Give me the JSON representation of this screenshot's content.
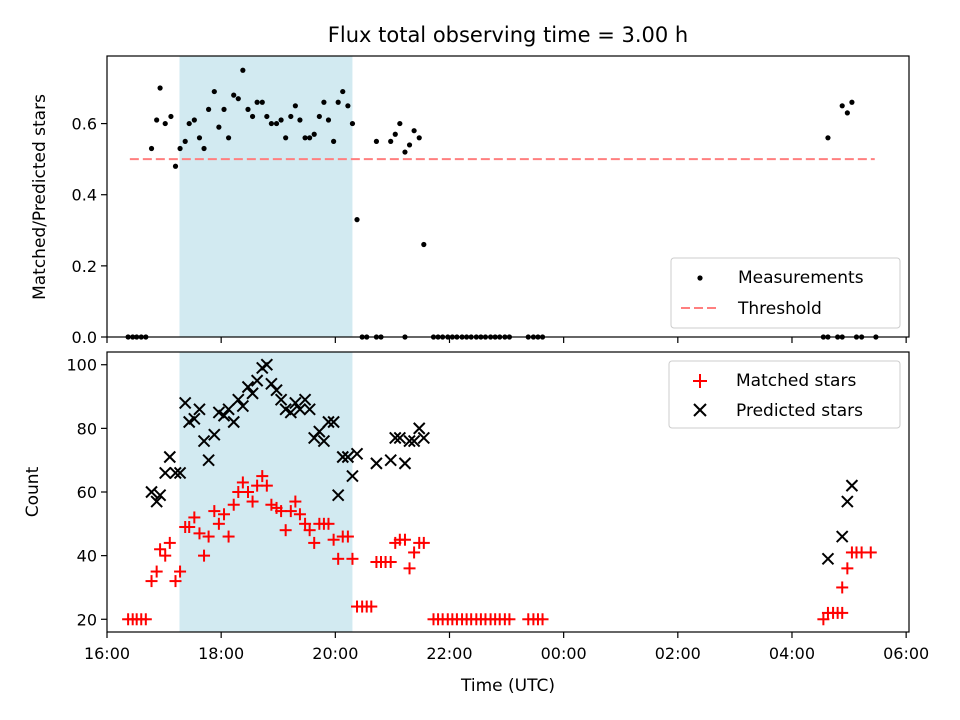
{
  "chart_data": [
    {
      "type": "scatter",
      "title": "Flux total observing time = 3.00 h",
      "xlabel": "",
      "ylabel": "Matched/Predicted stars",
      "ylim": [
        0,
        0.79
      ],
      "xlim": [
        16.0,
        30.05
      ],
      "x_ticks": [
        16,
        18,
        20,
        22,
        24,
        26,
        28,
        30
      ],
      "y_ticks": [
        {
          "value": 0,
          "label": "0.0"
        },
        {
          "value": 0.2,
          "label": "0.2"
        },
        {
          "value": 0.4,
          "label": "0.4"
        },
        {
          "value": 0.6,
          "label": "0.6"
        }
      ],
      "highlight_span": [
        17.27,
        20.3
      ],
      "legend_position": "lower-right",
      "threshold": {
        "name": "Threshold",
        "value": 0.5,
        "x": [
          16.4,
          29.45
        ],
        "color": "#ff7f7f"
      },
      "series": [
        {
          "name": "Measurements",
          "color": "#000000",
          "points": [
            [
              16.37,
              0
            ],
            [
              16.45,
              0
            ],
            [
              16.52,
              0
            ],
            [
              16.6,
              0
            ],
            [
              16.68,
              0
            ],
            [
              16.78,
              0.53
            ],
            [
              16.87,
              0.61
            ],
            [
              16.93,
              0.7
            ],
            [
              17.02,
              0.6
            ],
            [
              17.12,
              0.62
            ],
            [
              17.2,
              0.48
            ],
            [
              17.28,
              0.53
            ],
            [
              17.37,
              0.55
            ],
            [
              17.44,
              0.6
            ],
            [
              17.53,
              0.61
            ],
            [
              17.62,
              0.56
            ],
            [
              17.7,
              0.53
            ],
            [
              17.78,
              0.64
            ],
            [
              17.88,
              0.69
            ],
            [
              17.96,
              0.59
            ],
            [
              18.05,
              0.64
            ],
            [
              18.13,
              0.56
            ],
            [
              18.22,
              0.68
            ],
            [
              18.3,
              0.67
            ],
            [
              18.38,
              0.75
            ],
            [
              18.47,
              0.64
            ],
            [
              18.55,
              0.62
            ],
            [
              18.63,
              0.66
            ],
            [
              18.72,
              0.66
            ],
            [
              18.8,
              0.62
            ],
            [
              18.88,
              0.6
            ],
            [
              18.97,
              0.6
            ],
            [
              19.05,
              0.61
            ],
            [
              19.13,
              0.56
            ],
            [
              19.22,
              0.62
            ],
            [
              19.3,
              0.65
            ],
            [
              19.38,
              0.61
            ],
            [
              19.47,
              0.56
            ],
            [
              19.55,
              0.56
            ],
            [
              19.63,
              0.57
            ],
            [
              19.72,
              0.62
            ],
            [
              19.8,
              0.66
            ],
            [
              19.88,
              0.61
            ],
            [
              19.97,
              0.55
            ],
            [
              20.05,
              0.66
            ],
            [
              20.13,
              0.69
            ],
            [
              20.22,
              0.65
            ],
            [
              20.3,
              0.6
            ],
            [
              20.38,
              0.33
            ],
            [
              20.47,
              0
            ],
            [
              20.55,
              0
            ],
            [
              20.72,
              0
            ],
            [
              20.8,
              0
            ],
            [
              20.72,
              0.55
            ],
            [
              20.97,
              0.55
            ],
            [
              21.05,
              0.57
            ],
            [
              21.13,
              0.6
            ],
            [
              21.22,
              0.52
            ],
            [
              21.3,
              0.54
            ],
            [
              21.38,
              0.58
            ],
            [
              21.47,
              0.56
            ],
            [
              21.55,
              0.26
            ],
            [
              21.22,
              0
            ],
            [
              21.72,
              0
            ],
            [
              21.8,
              0
            ],
            [
              21.88,
              0
            ],
            [
              21.97,
              0
            ],
            [
              22.05,
              0
            ],
            [
              22.13,
              0
            ],
            [
              22.22,
              0
            ],
            [
              22.3,
              0
            ],
            [
              22.38,
              0
            ],
            [
              22.47,
              0
            ],
            [
              22.55,
              0
            ],
            [
              22.63,
              0
            ],
            [
              22.72,
              0
            ],
            [
              22.8,
              0
            ],
            [
              22.88,
              0
            ],
            [
              22.97,
              0
            ],
            [
              23.05,
              0
            ],
            [
              23.38,
              0
            ],
            [
              23.47,
              0
            ],
            [
              23.55,
              0
            ],
            [
              23.63,
              0
            ],
            [
              28.55,
              0
            ],
            [
              28.63,
              0
            ],
            [
              28.8,
              0
            ],
            [
              28.88,
              0
            ],
            [
              29.13,
              0
            ],
            [
              29.22,
              0
            ],
            [
              29.47,
              0
            ],
            [
              28.63,
              0.56
            ],
            [
              28.88,
              0.65
            ],
            [
              28.97,
              0.63
            ],
            [
              29.05,
              0.66
            ]
          ]
        }
      ]
    },
    {
      "type": "scatter",
      "title": "",
      "xlabel": "Time (UTC)",
      "ylabel": "Count",
      "ylim": [
        16,
        104
      ],
      "xlim": [
        16.0,
        30.05
      ],
      "x_ticks": [
        {
          "value": 16,
          "label": "16:00"
        },
        {
          "value": 18,
          "label": "18:00"
        },
        {
          "value": 20,
          "label": "20:00"
        },
        {
          "value": 22,
          "label": "22:00"
        },
        {
          "value": 24,
          "label": "00:00"
        },
        {
          "value": 26,
          "label": "02:00"
        },
        {
          "value": 28,
          "label": "04:00"
        },
        {
          "value": 30,
          "label": "06:00"
        }
      ],
      "y_ticks": [
        {
          "value": 20,
          "label": "20"
        },
        {
          "value": 40,
          "label": "40"
        },
        {
          "value": 60,
          "label": "60"
        },
        {
          "value": 80,
          "label": "80"
        },
        {
          "value": 100,
          "label": "100"
        }
      ],
      "highlight_span": [
        17.27,
        20.3
      ],
      "legend_position": "upper-right",
      "series": [
        {
          "name": "Matched stars",
          "marker": "plus",
          "color": "#ff0000",
          "points": [
            [
              16.37,
              20
            ],
            [
              16.45,
              20
            ],
            [
              16.52,
              20
            ],
            [
              16.6,
              20
            ],
            [
              16.68,
              20
            ],
            [
              16.78,
              32
            ],
            [
              16.87,
              35
            ],
            [
              16.93,
              42
            ],
            [
              17.02,
              40
            ],
            [
              17.1,
              44
            ],
            [
              17.2,
              32
            ],
            [
              17.28,
              35
            ],
            [
              17.37,
              49
            ],
            [
              17.44,
              49
            ],
            [
              17.53,
              52
            ],
            [
              17.62,
              47
            ],
            [
              17.7,
              40
            ],
            [
              17.78,
              46
            ],
            [
              17.88,
              54
            ],
            [
              17.96,
              50
            ],
            [
              18.05,
              53
            ],
            [
              18.13,
              46
            ],
            [
              18.22,
              56
            ],
            [
              18.3,
              60
            ],
            [
              18.38,
              63
            ],
            [
              18.47,
              60
            ],
            [
              18.55,
              57
            ],
            [
              18.63,
              62
            ],
            [
              18.72,
              65
            ],
            [
              18.8,
              62
            ],
            [
              18.88,
              56
            ],
            [
              18.97,
              55
            ],
            [
              19.05,
              54
            ],
            [
              19.13,
              48
            ],
            [
              19.22,
              54
            ],
            [
              19.3,
              57
            ],
            [
              19.38,
              53
            ],
            [
              19.47,
              50
            ],
            [
              19.55,
              48
            ],
            [
              19.63,
              44
            ],
            [
              19.72,
              50
            ],
            [
              19.8,
              50
            ],
            [
              19.88,
              50
            ],
            [
              19.97,
              45
            ],
            [
              20.05,
              39
            ],
            [
              20.13,
              46
            ],
            [
              20.22,
              46
            ],
            [
              20.3,
              39
            ],
            [
              20.38,
              24
            ],
            [
              20.47,
              24
            ],
            [
              20.55,
              24
            ],
            [
              20.63,
              24
            ],
            [
              20.72,
              38
            ],
            [
              20.8,
              38
            ],
            [
              20.88,
              38
            ],
            [
              20.97,
              38
            ],
            [
              21.05,
              44
            ],
            [
              21.13,
              45
            ],
            [
              21.22,
              45
            ],
            [
              21.3,
              36
            ],
            [
              21.38,
              41
            ],
            [
              21.47,
              44
            ],
            [
              21.55,
              44
            ],
            [
              21.72,
              20
            ],
            [
              21.8,
              20
            ],
            [
              21.88,
              20
            ],
            [
              21.97,
              20
            ],
            [
              22.05,
              20
            ],
            [
              22.13,
              20
            ],
            [
              22.22,
              20
            ],
            [
              22.3,
              20
            ],
            [
              22.38,
              20
            ],
            [
              22.47,
              20
            ],
            [
              22.55,
              20
            ],
            [
              22.63,
              20
            ],
            [
              22.72,
              20
            ],
            [
              22.8,
              20
            ],
            [
              22.88,
              20
            ],
            [
              22.97,
              20
            ],
            [
              23.05,
              20
            ],
            [
              23.38,
              20
            ],
            [
              23.47,
              20
            ],
            [
              23.55,
              20
            ],
            [
              23.63,
              20
            ],
            [
              28.55,
              20
            ],
            [
              28.63,
              22
            ],
            [
              28.72,
              22
            ],
            [
              28.8,
              22
            ],
            [
              28.88,
              22
            ],
            [
              28.88,
              30
            ],
            [
              28.97,
              36
            ],
            [
              29.05,
              41
            ],
            [
              29.13,
              41
            ],
            [
              29.22,
              41
            ],
            [
              29.38,
              41
            ]
          ]
        },
        {
          "name": "Predicted stars",
          "marker": "x",
          "color": "#000000",
          "points": [
            [
              16.78,
              60
            ],
            [
              16.87,
              57
            ],
            [
              16.93,
              59
            ],
            [
              17.02,
              66
            ],
            [
              17.1,
              71
            ],
            [
              17.2,
              66
            ],
            [
              17.28,
              66
            ],
            [
              17.37,
              88
            ],
            [
              17.44,
              82
            ],
            [
              17.53,
              83
            ],
            [
              17.62,
              86
            ],
            [
              17.7,
              76
            ],
            [
              17.78,
              70
            ],
            [
              17.88,
              78
            ],
            [
              17.96,
              85
            ],
            [
              18.05,
              84
            ],
            [
              18.13,
              86
            ],
            [
              18.22,
              82
            ],
            [
              18.3,
              89
            ],
            [
              18.38,
              87
            ],
            [
              18.47,
              93
            ],
            [
              18.55,
              91
            ],
            [
              18.63,
              95
            ],
            [
              18.72,
              99
            ],
            [
              18.8,
              100
            ],
            [
              18.88,
              94
            ],
            [
              18.97,
              92
            ],
            [
              19.05,
              89
            ],
            [
              19.13,
              86
            ],
            [
              19.22,
              85
            ],
            [
              19.3,
              88
            ],
            [
              19.38,
              86
            ],
            [
              19.47,
              89
            ],
            [
              19.55,
              86
            ],
            [
              19.63,
              77
            ],
            [
              19.72,
              79
            ],
            [
              19.8,
              76
            ],
            [
              19.88,
              82
            ],
            [
              19.97,
              82
            ],
            [
              20.05,
              59
            ],
            [
              20.13,
              71
            ],
            [
              20.22,
              71
            ],
            [
              20.3,
              65
            ],
            [
              20.38,
              72
            ],
            [
              20.72,
              69
            ],
            [
              20.97,
              70
            ],
            [
              21.05,
              77
            ],
            [
              21.13,
              77
            ],
            [
              21.22,
              69
            ],
            [
              21.3,
              76
            ],
            [
              21.38,
              76
            ],
            [
              21.47,
              80
            ],
            [
              21.55,
              77
            ],
            [
              28.63,
              39
            ],
            [
              28.88,
              46
            ],
            [
              28.97,
              57
            ],
            [
              29.05,
              62
            ]
          ]
        }
      ]
    }
  ]
}
